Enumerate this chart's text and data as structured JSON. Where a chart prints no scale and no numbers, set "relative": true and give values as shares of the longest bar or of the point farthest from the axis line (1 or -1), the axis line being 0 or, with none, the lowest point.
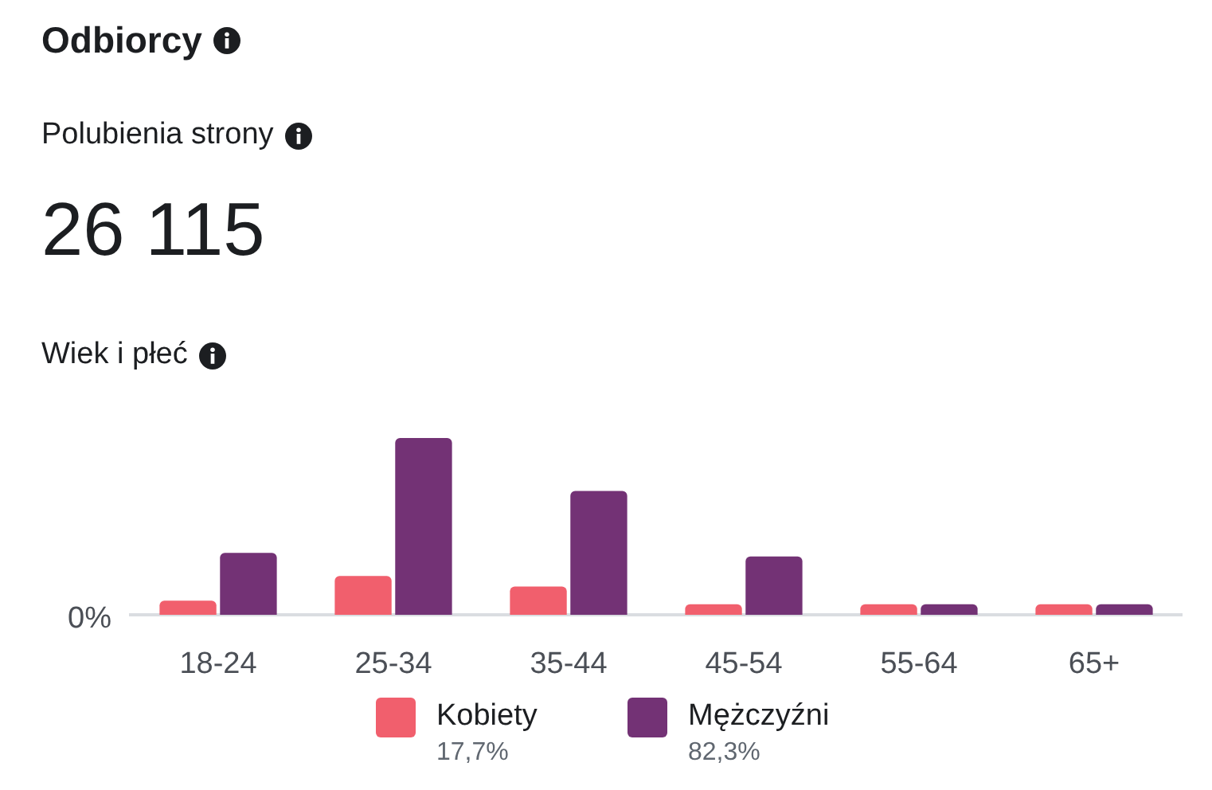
{
  "chart_data": {
    "type": "bar",
    "title": "Odbiorcy",
    "subtitle": "Polubienia strony",
    "categories": [
      "18-24",
      "25-34",
      "35-44",
      "45-54",
      "55-64",
      "65+"
    ],
    "series": [
      {
        "name": "Kobiety",
        "color": "#f15f6d",
        "values": [
          0.08,
          0.22,
          0.16,
          0.06,
          0.06,
          0.06
        ]
      },
      {
        "name": "Mężczyźni",
        "color": "#733275",
        "values": [
          0.35,
          1,
          0.7,
          0.33,
          0.06,
          0.06
        ]
      }
    ],
    "relative": true,
    "annotations": [
      "26 115",
      "Wiek i płeć",
      "0%",
      "17,7%",
      "82,3%"
    ],
    "legend": "bottom"
  }
}
